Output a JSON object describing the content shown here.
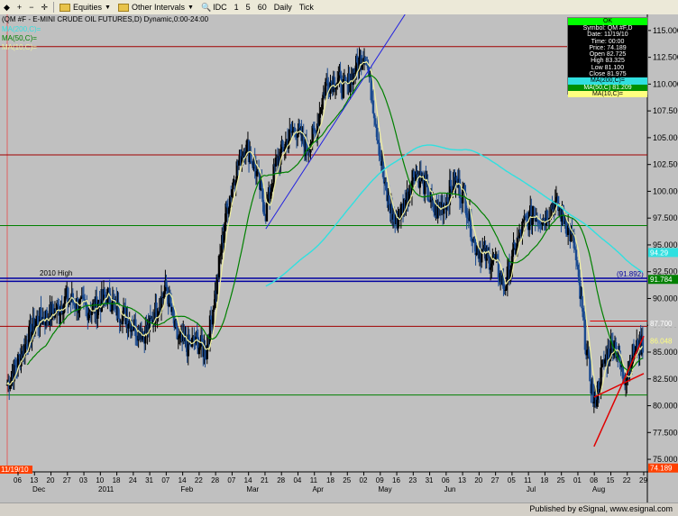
{
  "toolbar": {
    "symbols_label": "Equities",
    "intervals_label": "Other Intervals",
    "symbol_button": "IDC",
    "intervals": [
      "1",
      "5",
      "60"
    ],
    "daily_label": "Daily",
    "tick_label": "Tick"
  },
  "chart_title": "(QM #F - E-MINI CRUDE OIL FUTURES,D) Dynamic,0:00-24:00",
  "ma_labels": [
    {
      "text": "MA(200,C)=",
      "color": "#30e0e0"
    },
    {
      "text": "MA(50,C)=",
      "color": "#008000"
    },
    {
      "text": "MA(10,C)=",
      "color": "#f0f0a0"
    }
  ],
  "data_window": {
    "header": "OK",
    "rows": [
      "Symbol: QM #F,D",
      "Date: 11/19/10",
      "Time: 00:00",
      "Price: 74.189",
      "Open 82.725",
      "High 83.325",
      "Low 81.100",
      "Close 81.975"
    ],
    "ma_rows": [
      "MA(200,C)=",
      "MA(50,C) 81.209",
      "MA(10,C)="
    ]
  },
  "annotation_2010_high": "2010 High",
  "level_label_2010_high": "(91.892)",
  "price_badges": [
    {
      "text": "94.29",
      "value": 94.29,
      "bg": "#30e0e0",
      "fg": "#ffffff"
    },
    {
      "text": "91.784",
      "value": 91.784,
      "bg": "#008000",
      "fg": "#ffffff"
    },
    {
      "text": "87.700",
      "value": 87.7,
      "bg": "#c0c0c0",
      "fg": "#ffffff"
    },
    {
      "text": "86.048",
      "value": 86.048,
      "bg": "#c0c0c0",
      "fg": "#ffff80"
    },
    {
      "text": "74.189",
      "value": 74.189,
      "bg": "#ff4000",
      "fg": "#ffffff"
    }
  ],
  "left_badge": "11/19/10",
  "footer_text": "Published by eSignal, www.esignal.com",
  "colors": {
    "background": "#c0c0c0",
    "bars": "#000000",
    "bar_highlight": "#1a4a90",
    "ma10": "#f0f0a0",
    "ma50": "#008000",
    "ma200": "#30e0e0",
    "trend_blue": "#2020e0",
    "trend_red": "#e00000",
    "hline_red": "#a00000",
    "hline_green": "#008000",
    "hline_blue": "#0000a0"
  },
  "chart_data": {
    "type": "candlestick-ohlc",
    "ylim": [
      74.5,
      116.5
    ],
    "y_ticks": [
      75.0,
      77.5,
      80.0,
      82.5,
      85.0,
      87.5,
      90.0,
      92.5,
      95.0,
      97.5,
      100.0,
      102.5,
      105.0,
      107.5,
      110.0,
      112.5,
      115.0
    ],
    "x_tick_labels": [
      "06",
      "13",
      "20",
      "27",
      "03",
      "10",
      "18",
      "24",
      "31",
      "07",
      "14",
      "22",
      "28",
      "07",
      "14",
      "21",
      "28",
      "04",
      "11",
      "18",
      "25",
      "02",
      "09",
      "16",
      "23",
      "31",
      "06",
      "13",
      "20",
      "27",
      "05",
      "11",
      "18",
      "25",
      "01",
      "08",
      "15",
      "22",
      "29"
    ],
    "x_month_labels": [
      {
        "label": "Dec",
        "at": 0
      },
      {
        "label": "2011",
        "at": 4
      },
      {
        "label": "Feb",
        "at": 9
      },
      {
        "label": "Mar",
        "at": 13
      },
      {
        "label": "Apr",
        "at": 17
      },
      {
        "label": "May",
        "at": 21
      },
      {
        "label": "Jun",
        "at": 25
      },
      {
        "label": "Jul",
        "at": 30
      },
      {
        "label": "Aug",
        "at": 34
      }
    ],
    "close_path": [
      [
        0,
        82.0
      ],
      [
        1,
        84.0
      ],
      [
        2,
        86.0
      ],
      [
        3,
        88.0
      ],
      [
        4,
        88.3
      ],
      [
        5,
        89.0
      ],
      [
        6,
        90.0
      ],
      [
        7,
        89.5
      ],
      [
        8,
        89.0
      ],
      [
        9,
        89.2
      ],
      [
        10,
        90.4
      ],
      [
        11,
        89.0
      ],
      [
        12,
        88.3
      ],
      [
        13,
        87.2
      ],
      [
        14,
        86.8
      ],
      [
        15,
        89.0
      ],
      [
        16,
        91.0
      ],
      [
        17,
        86.5
      ],
      [
        18,
        85.5
      ],
      [
        19,
        86.0
      ],
      [
        20,
        85.0
      ],
      [
        21,
        91.0
      ],
      [
        22,
        98.0
      ],
      [
        23,
        102.0
      ],
      [
        24,
        104.5
      ],
      [
        25,
        102.0
      ],
      [
        26,
        98.0
      ],
      [
        27,
        102.5
      ],
      [
        28,
        104.5
      ],
      [
        29,
        106.0
      ],
      [
        30,
        104.0
      ],
      [
        31,
        105.5
      ],
      [
        32,
        110.0
      ],
      [
        33,
        110.5
      ],
      [
        34,
        109.5
      ],
      [
        35,
        111.5
      ],
      [
        36,
        113.0
      ],
      [
        37,
        107.0
      ],
      [
        38,
        100.0
      ],
      [
        39,
        97.0
      ],
      [
        40,
        99.0
      ],
      [
        41,
        102.0
      ],
      [
        42,
        100.5
      ],
      [
        43,
        98.0
      ],
      [
        44,
        99.0
      ],
      [
        45,
        101.0
      ],
      [
        46,
        99.5
      ],
      [
        47,
        95.0
      ],
      [
        48,
        94.0
      ],
      [
        49,
        93.5
      ],
      [
        50,
        91.0
      ],
      [
        51,
        94.5
      ],
      [
        52,
        97.0
      ],
      [
        53,
        98.0
      ],
      [
        54,
        97.5
      ],
      [
        55,
        99.0
      ],
      [
        56,
        97.5
      ],
      [
        57,
        95.0
      ],
      [
        58,
        87.0
      ],
      [
        59,
        80.0
      ],
      [
        60,
        84.0
      ],
      [
        61,
        86.0
      ],
      [
        62,
        82.5
      ],
      [
        63,
        85.0
      ],
      [
        64,
        86.0
      ]
    ],
    "hlines": [
      {
        "value": 113.5,
        "color": "hline_red"
      },
      {
        "value": 103.4,
        "color": "hline_red"
      },
      {
        "value": 96.8,
        "color": "hline_green"
      },
      {
        "value": 91.892,
        "color": "hline_blue",
        "label": "2010 High"
      },
      {
        "value": 91.6,
        "color": "hline_blue"
      },
      {
        "value": 87.4,
        "color": "hline_red"
      },
      {
        "value": 81.0,
        "color": "hline_green"
      }
    ]
  }
}
